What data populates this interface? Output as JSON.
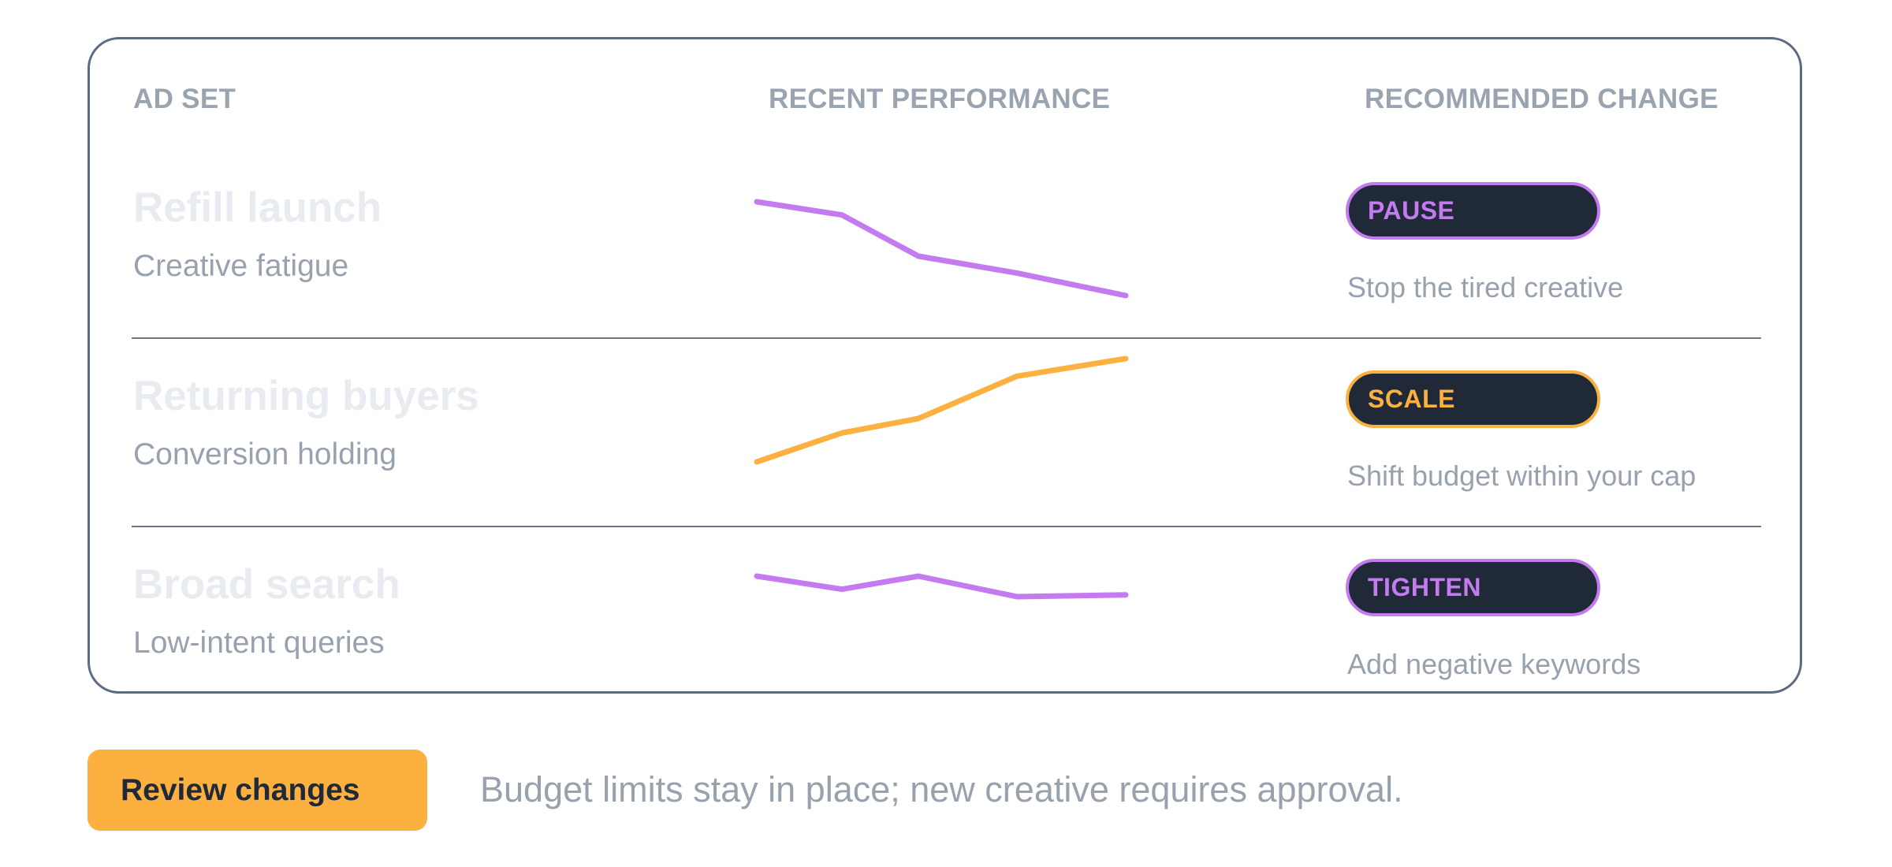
{
  "table": {
    "headers": {
      "ad_set": "AD SET",
      "performance": "RECENT PERFORMANCE",
      "recommendation": "RECOMMENDED CHANGE"
    },
    "rows": [
      {
        "title": "Refill launch",
        "subtitle": "Creative fatigue",
        "action": "PAUSE",
        "action_color": "#c57bf0",
        "note": "Stop the tired creative",
        "trend": [
          1.0,
          0.86,
          0.42,
          0.24,
          0.0
        ]
      },
      {
        "title": "Returning buyers",
        "subtitle": "Conversion holding",
        "action": "SCALE",
        "action_color": "#fbb040",
        "note": "Shift budget within your cap",
        "trend": [
          0.0,
          0.28,
          0.42,
          0.83,
          1.0
        ]
      },
      {
        "title": "Broad search",
        "subtitle": "Low-intent queries",
        "action": "TIGHTEN",
        "action_color": "#c57bf0",
        "note": "Add negative keywords",
        "trend": [
          1.0,
          0.36,
          1.0,
          0.0,
          0.09
        ]
      }
    ]
  },
  "footer": {
    "button_label": "Review changes",
    "note": "Budget limits stay in place; new creative requires approval."
  },
  "colors": {
    "accent_purple": "#c57bf0",
    "accent_orange": "#fbb040",
    "pill_bg": "#1f2937",
    "border": "#5b6b80",
    "muted_text": "#98a1ae"
  }
}
